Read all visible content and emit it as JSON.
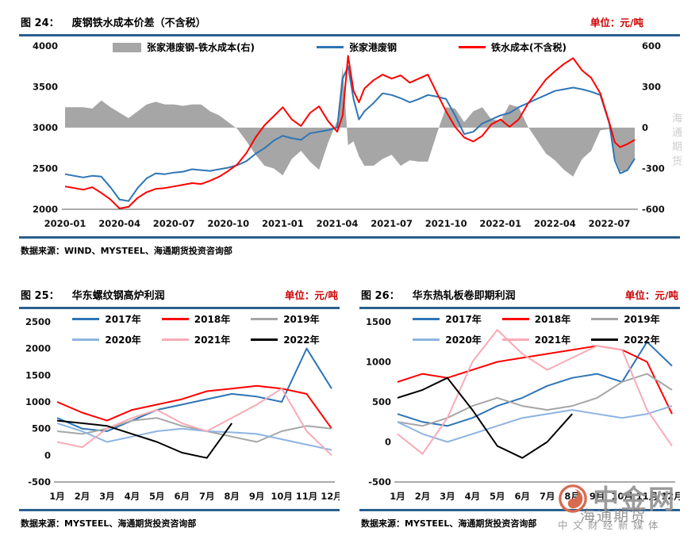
{
  "colors": {
    "rule": "#2a5f8f",
    "unit": "#cc0000",
    "wm-orange": "#d96a4f",
    "wm-gray": "#969696"
  },
  "watermark": {
    "brand": "中金网",
    "overlay": "海通期货",
    "subtitle": "中文财经新媒体",
    "side_text": "海通期货"
  },
  "chart_data": [
    {
      "id": "fig24",
      "type": "line+area",
      "fig_label": "图 24：",
      "title": "废钢铁水成本价差（不含税）",
      "unit_label": "单位：元/吨",
      "source": "数据来源：WIND、MYSTEEL、海通期货投资咨询部",
      "x_unit": "months since 2020-01",
      "xticks": [
        [
          0,
          "2020-01"
        ],
        [
          3,
          "2020-04"
        ],
        [
          6,
          "2020-07"
        ],
        [
          9,
          "2020-10"
        ],
        [
          12,
          "2021-01"
        ],
        [
          15,
          "2021-04"
        ],
        [
          18,
          "2021-07"
        ],
        [
          21,
          "2021-10"
        ],
        [
          24,
          "2022-01"
        ],
        [
          27,
          "2022-04"
        ],
        [
          30,
          "2022-07"
        ]
      ],
      "ylim_left": [
        2000,
        4000
      ],
      "yticks_left": [
        4000,
        3500,
        3000,
        2500,
        2000
      ],
      "ylim_right": [
        -600,
        600
      ],
      "yticks_right": [
        600,
        300,
        0,
        -300,
        -600
      ],
      "x": [
        0,
        0.5,
        1,
        1.5,
        2,
        2.5,
        3,
        3.5,
        4,
        4.5,
        5,
        5.5,
        6,
        6.5,
        7,
        7.5,
        8,
        8.5,
        9,
        9.5,
        10,
        10.5,
        11,
        11.5,
        12,
        12.5,
        13,
        13.5,
        14,
        14.5,
        15,
        15.3,
        15.6,
        15.9,
        16.2,
        16.5,
        17,
        17.5,
        18,
        18.5,
        19,
        19.5,
        20,
        20.5,
        21,
        21.5,
        22,
        22.5,
        23,
        23.5,
        24,
        24.5,
        25,
        25.5,
        26,
        26.5,
        27,
        27.5,
        28,
        28.5,
        29,
        29.5,
        30,
        30.3,
        30.6,
        31,
        31.4
      ],
      "series": [
        {
          "name": "张家港废钢-铁水成本(右)",
          "type": "area",
          "axis": "right",
          "color": "#a6a6a6",
          "derived": "张家港废钢 minus 铁水成本(不含税)"
        },
        {
          "name": "张家港废钢",
          "type": "line",
          "axis": "left",
          "color": "#2e75b6",
          "values": [
            2430,
            2410,
            2390,
            2410,
            2400,
            2270,
            2120,
            2100,
            2260,
            2380,
            2440,
            2430,
            2450,
            2460,
            2490,
            2480,
            2470,
            2490,
            2510,
            2540,
            2590,
            2680,
            2750,
            2840,
            2900,
            2870,
            2850,
            2930,
            2950,
            2970,
            3000,
            3600,
            3750,
            3350,
            3100,
            3200,
            3300,
            3420,
            3400,
            3360,
            3310,
            3350,
            3400,
            3380,
            3350,
            3150,
            2920,
            2950,
            3050,
            3100,
            3150,
            3180,
            3250,
            3300,
            3350,
            3400,
            3450,
            3470,
            3490,
            3470,
            3440,
            3400,
            3050,
            2600,
            2440,
            2480,
            2620
          ]
        },
        {
          "name": "铁水成本(不含税)",
          "type": "line",
          "axis": "left",
          "color": "#ff0000",
          "values": [
            2280,
            2260,
            2240,
            2270,
            2200,
            2120,
            2010,
            2030,
            2140,
            2210,
            2250,
            2260,
            2280,
            2300,
            2320,
            2310,
            2350,
            2400,
            2470,
            2550,
            2690,
            2880,
            3030,
            3140,
            3250,
            3100,
            3020,
            3180,
            3260,
            3080,
            2950,
            3150,
            3880,
            3450,
            3310,
            3480,
            3580,
            3650,
            3600,
            3640,
            3550,
            3600,
            3650,
            3420,
            3200,
            3010,
            2880,
            2830,
            2900,
            3040,
            3100,
            3010,
            3100,
            3290,
            3440,
            3590,
            3690,
            3780,
            3850,
            3700,
            3610,
            3420,
            3060,
            2820,
            2760,
            2800,
            2850
          ]
        }
      ]
    },
    {
      "id": "fig25",
      "type": "line",
      "fig_label": "图 25：",
      "title": "华东螺纹钢高炉利润",
      "unit_label": "单位：元/吨",
      "source": "数据来源：MYSTEEL、海通期货投资咨询部",
      "xtick_labels": [
        "1月",
        "2月",
        "3月",
        "4月",
        "5月",
        "6月",
        "7月",
        "8月",
        "9月",
        "10月",
        "11月",
        "12月"
      ],
      "ylim": [
        -500,
        2500
      ],
      "yticks": [
        2500,
        2000,
        1500,
        1000,
        500,
        0,
        -500
      ],
      "series": [
        {
          "name": "2017年",
          "color": "#2e75b6",
          "values": [
            700,
            500,
            450,
            650,
            850,
            950,
            1050,
            1150,
            1100,
            1000,
            2000,
            1250
          ]
        },
        {
          "name": "2018年",
          "color": "#ff0000",
          "values": [
            1000,
            800,
            650,
            850,
            950,
            1050,
            1200,
            1250,
            1300,
            1250,
            1150,
            500
          ]
        },
        {
          "name": "2019年",
          "color": "#a6a6a6",
          "values": [
            450,
            400,
            500,
            650,
            700,
            550,
            450,
            350,
            250,
            450,
            550,
            500
          ]
        },
        {
          "name": "2020年",
          "color": "#8db4e2",
          "values": [
            600,
            450,
            250,
            350,
            450,
            500,
            450,
            430,
            400,
            300,
            200,
            100
          ]
        },
        {
          "name": "2021年",
          "color": "#f7abb6",
          "values": [
            250,
            150,
            500,
            700,
            850,
            600,
            450,
            700,
            950,
            1250,
            450,
            0
          ]
        },
        {
          "name": "2022年",
          "color": "#000000",
          "values": [
            650,
            600,
            550,
            400,
            250,
            50,
            -50,
            600
          ]
        }
      ]
    },
    {
      "id": "fig26",
      "type": "line",
      "fig_label": "图 26：",
      "title": "华东热轧板卷即期利润",
      "unit_label": "单位：元/吨",
      "source": "数据来源：MYSTEEL、海通期货投资咨询部",
      "xtick_labels": [
        "1月",
        "2月",
        "3月",
        "4月",
        "5月",
        "6月",
        "7月",
        "8月",
        "9月",
        "10月",
        "11月",
        "12月"
      ],
      "ylim": [
        -500,
        1500
      ],
      "yticks": [
        1500,
        1000,
        500,
        0,
        -500
      ],
      "series": [
        {
          "name": "2017年",
          "color": "#2e75b6",
          "values": [
            350,
            250,
            200,
            300,
            450,
            550,
            700,
            800,
            850,
            750,
            1250,
            950
          ]
        },
        {
          "name": "2018年",
          "color": "#ff0000",
          "values": [
            750,
            850,
            800,
            900,
            1000,
            1050,
            1100,
            1150,
            1200,
            1150,
            1000,
            350
          ]
        },
        {
          "name": "2019年",
          "color": "#a6a6a6",
          "values": [
            250,
            200,
            300,
            450,
            550,
            450,
            400,
            450,
            550,
            750,
            850,
            650
          ]
        },
        {
          "name": "2020年",
          "color": "#8db4e2",
          "values": [
            250,
            100,
            0,
            100,
            200,
            300,
            350,
            400,
            350,
            300,
            350,
            450
          ]
        },
        {
          "name": "2021年",
          "color": "#f7abb6",
          "values": [
            100,
            -150,
            300,
            1000,
            1400,
            1100,
            900,
            1050,
            1200,
            1150,
            400,
            -50
          ]
        },
        {
          "name": "2022年",
          "color": "#000000",
          "values": [
            550,
            650,
            800,
            400,
            -50,
            -200,
            0,
            350
          ]
        }
      ]
    }
  ]
}
